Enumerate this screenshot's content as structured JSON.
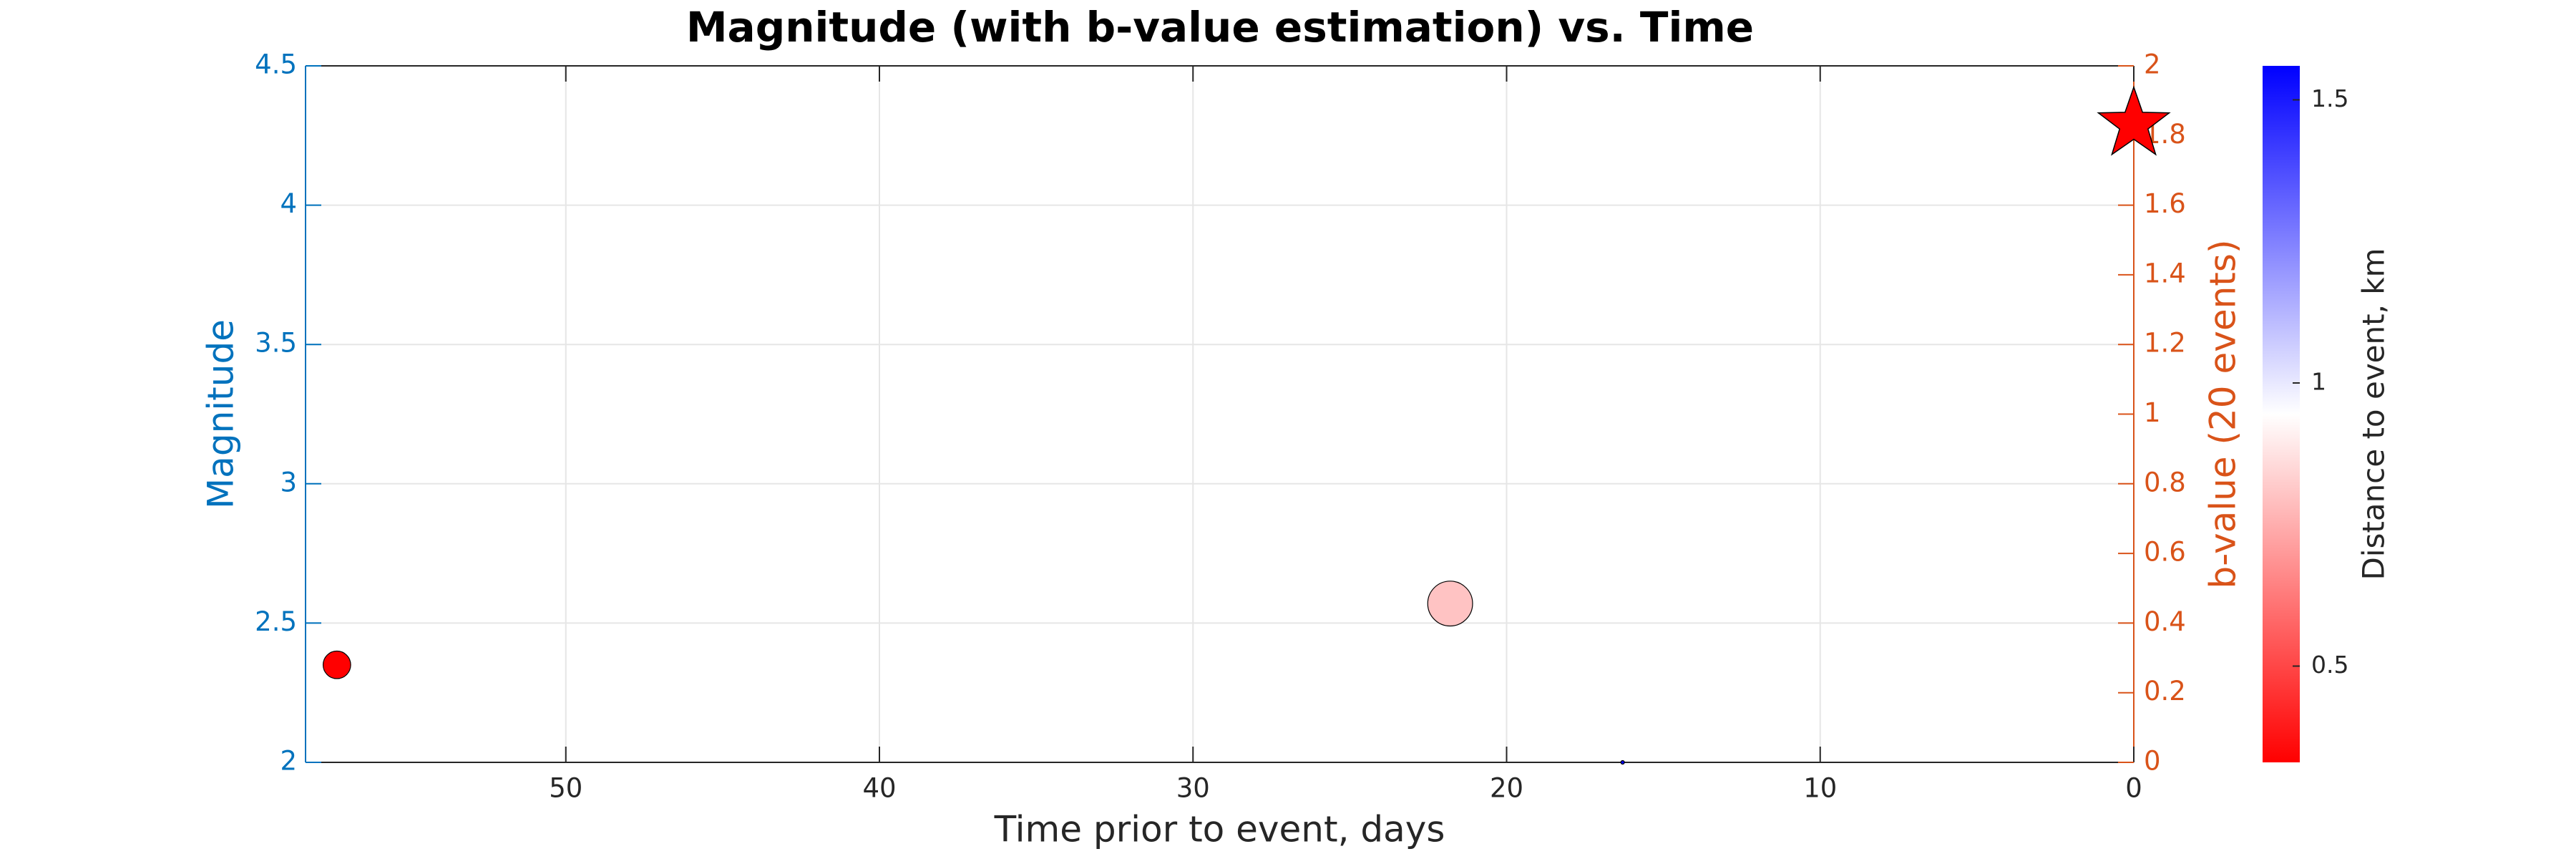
{
  "chart_data": {
    "type": "scatter",
    "title": "Magnitude (with b-value estimation) vs. Time",
    "x_label": "Time prior to event, days",
    "y_label": "Magnitude",
    "y2_label": "b-value (20 events)",
    "xlim": [
      58.3,
      0
    ],
    "xticks": [
      50,
      40,
      30,
      20,
      10,
      0
    ],
    "ylim": [
      2,
      4.5
    ],
    "yticks": [
      2,
      2.5,
      3,
      3.5,
      4,
      4.5
    ],
    "y2lim": [
      0,
      2
    ],
    "y2ticks": [
      0,
      0.2,
      0.4,
      0.6,
      0.8,
      1,
      1.2,
      1.4,
      1.6,
      1.8,
      2
    ],
    "y_color": "#0072bd",
    "y2_color": "#d95319",
    "grid": true,
    "series": [
      {
        "marker": "circle",
        "x": [
          57.3,
          21.8,
          16.3
        ],
        "values": [
          2.35,
          2.57,
          2.0
        ],
        "distance": [
          0.33,
          0.8,
          1.56
        ]
      },
      {
        "marker": "star",
        "color": "#ff0000",
        "x": [
          0
        ],
        "values": [
          4.29
        ]
      }
    ],
    "colorbar": {
      "label": "Distance to event, km",
      "lim": [
        0.33,
        1.56
      ],
      "ticks": [
        0.5,
        1,
        1.5
      ],
      "colors": [
        "#ff0000",
        "#ffffff",
        "#0000ff"
      ]
    }
  }
}
